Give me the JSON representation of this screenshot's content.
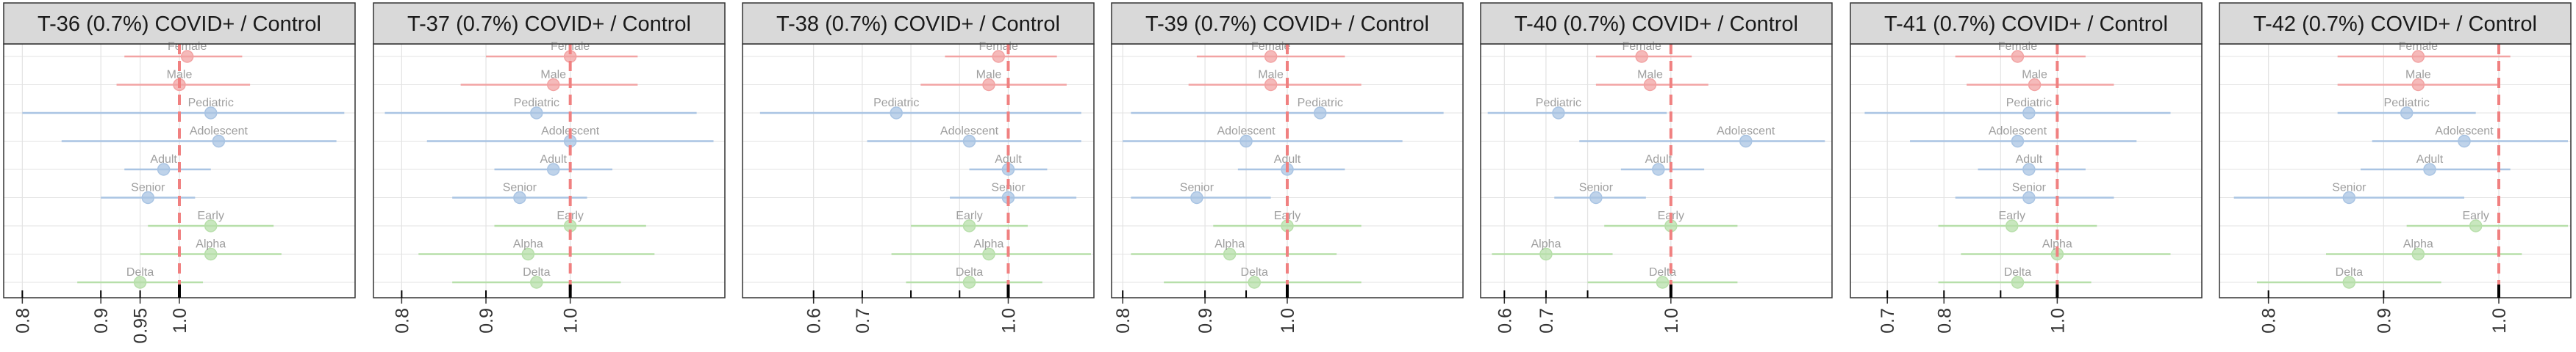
{
  "colors": {
    "strip_fill": "#d9d9d9",
    "strip_border": "#333333",
    "panel_border": "#333333",
    "grid_major": "#e3e3e3",
    "grid_minor": "#f1f1f1",
    "ref_line": "#f08080",
    "sex": "#f2a3a3",
    "age": "#a9c4e3",
    "wave": "#b7dfaa",
    "point_label": "#9e9e9e",
    "tick_text": "#333333"
  },
  "chart_data": [
    {
      "type": "scatter",
      "title": "T-36 (0.7%) COVID+ / Control",
      "xlim": [
        0.78,
        1.22
      ],
      "xticks": [
        0.8,
        0.9,
        0.95,
        1.0
      ],
      "ref_x": 1.0,
      "series": [
        {
          "name": "Female",
          "group": "sex",
          "estimate": 1.01,
          "lower": 0.93,
          "upper": 1.08
        },
        {
          "name": "Male",
          "group": "sex",
          "estimate": 1.0,
          "lower": 0.92,
          "upper": 1.09
        },
        {
          "name": "Pediatric",
          "group": "age",
          "estimate": 1.04,
          "lower": 0.8,
          "upper": 1.21
        },
        {
          "name": "Adolescent",
          "group": "age",
          "estimate": 1.05,
          "lower": 0.85,
          "upper": 1.2
        },
        {
          "name": "Adult",
          "group": "age",
          "estimate": 0.98,
          "lower": 0.93,
          "upper": 1.04
        },
        {
          "name": "Senior",
          "group": "age",
          "estimate": 0.96,
          "lower": 0.9,
          "upper": 1.02
        },
        {
          "name": "Early",
          "group": "wave",
          "estimate": 1.04,
          "lower": 0.96,
          "upper": 1.12
        },
        {
          "name": "Alpha",
          "group": "wave",
          "estimate": 1.04,
          "lower": 0.95,
          "upper": 1.13
        },
        {
          "name": "Delta",
          "group": "wave",
          "estimate": 0.95,
          "lower": 0.87,
          "upper": 1.03
        }
      ]
    },
    {
      "type": "scatter",
      "title": "T-37 (0.7%) COVID+ / Control",
      "xlim": [
        0.77,
        1.18
      ],
      "xticks": [
        0.8,
        0.9,
        1.0
      ],
      "ref_x": 1.0,
      "series": [
        {
          "name": "Female",
          "group": "sex",
          "estimate": 1.0,
          "lower": 0.9,
          "upper": 1.08
        },
        {
          "name": "Male",
          "group": "sex",
          "estimate": 0.98,
          "lower": 0.87,
          "upper": 1.08
        },
        {
          "name": "Pediatric",
          "group": "age",
          "estimate": 0.96,
          "lower": 0.78,
          "upper": 1.15
        },
        {
          "name": "Adolescent",
          "group": "age",
          "estimate": 1.0,
          "lower": 0.83,
          "upper": 1.17
        },
        {
          "name": "Adult",
          "group": "age",
          "estimate": 0.98,
          "lower": 0.91,
          "upper": 1.05
        },
        {
          "name": "Senior",
          "group": "age",
          "estimate": 0.94,
          "lower": 0.86,
          "upper": 1.02
        },
        {
          "name": "Early",
          "group": "wave",
          "estimate": 1.0,
          "lower": 0.91,
          "upper": 1.09
        },
        {
          "name": "Alpha",
          "group": "wave",
          "estimate": 0.95,
          "lower": 0.82,
          "upper": 1.1
        },
        {
          "name": "Delta",
          "group": "wave",
          "estimate": 0.96,
          "lower": 0.86,
          "upper": 1.06
        }
      ]
    },
    {
      "type": "scatter",
      "title": "T-38 (0.7%) COVID+ / Control",
      "xlim": [
        0.46,
        1.17
      ],
      "xticks": [
        0.6,
        0.7,
        1.0
      ],
      "minor_ticks": [
        0.8,
        0.9
      ],
      "ref_x": 1.0,
      "series": [
        {
          "name": "Female",
          "group": "sex",
          "estimate": 0.98,
          "lower": 0.87,
          "upper": 1.1
        },
        {
          "name": "Male",
          "group": "sex",
          "estimate": 0.96,
          "lower": 0.82,
          "upper": 1.12
        },
        {
          "name": "Pediatric",
          "group": "age",
          "estimate": 0.77,
          "lower": 0.49,
          "upper": 1.15
        },
        {
          "name": "Adolescent",
          "group": "age",
          "estimate": 0.92,
          "lower": 0.71,
          "upper": 1.15
        },
        {
          "name": "Adult",
          "group": "age",
          "estimate": 1.0,
          "lower": 0.92,
          "upper": 1.08
        },
        {
          "name": "Senior",
          "group": "age",
          "estimate": 1.0,
          "lower": 0.88,
          "upper": 1.14
        },
        {
          "name": "Early",
          "group": "wave",
          "estimate": 0.92,
          "lower": 0.8,
          "upper": 1.04
        },
        {
          "name": "Alpha",
          "group": "wave",
          "estimate": 0.96,
          "lower": 0.76,
          "upper": 1.17
        },
        {
          "name": "Delta",
          "group": "wave",
          "estimate": 0.92,
          "lower": 0.79,
          "upper": 1.07
        }
      ]
    },
    {
      "type": "scatter",
      "title": "T-39 (0.7%) COVID+ / Control",
      "xlim": [
        0.79,
        1.21
      ],
      "xticks": [
        0.8,
        0.9,
        1.0
      ],
      "minor_ticks": [
        0.95
      ],
      "ref_x": 1.0,
      "series": [
        {
          "name": "Female",
          "group": "sex",
          "estimate": 0.98,
          "lower": 0.89,
          "upper": 1.07
        },
        {
          "name": "Male",
          "group": "sex",
          "estimate": 0.98,
          "lower": 0.88,
          "upper": 1.09
        },
        {
          "name": "Pediatric",
          "group": "age",
          "estimate": 1.04,
          "lower": 0.81,
          "upper": 1.19
        },
        {
          "name": "Adolescent",
          "group": "age",
          "estimate": 0.95,
          "lower": 0.8,
          "upper": 1.14
        },
        {
          "name": "Adult",
          "group": "age",
          "estimate": 1.0,
          "lower": 0.94,
          "upper": 1.07
        },
        {
          "name": "Senior",
          "group": "age",
          "estimate": 0.89,
          "lower": 0.81,
          "upper": 0.98
        },
        {
          "name": "Early",
          "group": "wave",
          "estimate": 1.0,
          "lower": 0.91,
          "upper": 1.09
        },
        {
          "name": "Alpha",
          "group": "wave",
          "estimate": 0.93,
          "lower": 0.81,
          "upper": 1.06
        },
        {
          "name": "Delta",
          "group": "wave",
          "estimate": 0.96,
          "lower": 0.85,
          "upper": 1.09
        }
      ]
    },
    {
      "type": "scatter",
      "title": "T-40 (0.7%) COVID+ / Control",
      "xlim": [
        0.55,
        1.38
      ],
      "xticks": [
        0.6,
        0.7,
        1.0
      ],
      "minor_ticks": [
        0.8
      ],
      "ref_x": 1.0,
      "series": [
        {
          "name": "Female",
          "group": "sex",
          "estimate": 0.93,
          "lower": 0.82,
          "upper": 1.05
        },
        {
          "name": "Male",
          "group": "sex",
          "estimate": 0.95,
          "lower": 0.82,
          "upper": 1.09
        },
        {
          "name": "Pediatric",
          "group": "age",
          "estimate": 0.73,
          "lower": 0.56,
          "upper": 0.99
        },
        {
          "name": "Adolescent",
          "group": "age",
          "estimate": 1.18,
          "lower": 0.78,
          "upper": 1.37
        },
        {
          "name": "Adult",
          "group": "age",
          "estimate": 0.97,
          "lower": 0.88,
          "upper": 1.08
        },
        {
          "name": "Senior",
          "group": "age",
          "estimate": 0.82,
          "lower": 0.72,
          "upper": 0.94
        },
        {
          "name": "Early",
          "group": "wave",
          "estimate": 1.0,
          "lower": 0.84,
          "upper": 1.16
        },
        {
          "name": "Alpha",
          "group": "wave",
          "estimate": 0.7,
          "lower": 0.57,
          "upper": 0.86
        },
        {
          "name": "Delta",
          "group": "wave",
          "estimate": 0.98,
          "lower": 0.8,
          "upper": 1.16
        }
      ]
    },
    {
      "type": "scatter",
      "title": "T-41 (0.7%) COVID+ / Control",
      "xlim": [
        0.64,
        1.25
      ],
      "xticks": [
        0.7,
        0.8,
        1.0
      ],
      "minor_ticks": [
        0.9
      ],
      "ref_x": 1.0,
      "series": [
        {
          "name": "Female",
          "group": "sex",
          "estimate": 0.93,
          "lower": 0.82,
          "upper": 1.05
        },
        {
          "name": "Male",
          "group": "sex",
          "estimate": 0.96,
          "lower": 0.84,
          "upper": 1.1
        },
        {
          "name": "Pediatric",
          "group": "age",
          "estimate": 0.95,
          "lower": 0.66,
          "upper": 1.2
        },
        {
          "name": "Adolescent",
          "group": "age",
          "estimate": 0.93,
          "lower": 0.74,
          "upper": 1.14
        },
        {
          "name": "Adult",
          "group": "age",
          "estimate": 0.95,
          "lower": 0.86,
          "upper": 1.05
        },
        {
          "name": "Senior",
          "group": "age",
          "estimate": 0.95,
          "lower": 0.82,
          "upper": 1.1
        },
        {
          "name": "Early",
          "group": "wave",
          "estimate": 0.92,
          "lower": 0.79,
          "upper": 1.07
        },
        {
          "name": "Alpha",
          "group": "wave",
          "estimate": 1.0,
          "lower": 0.83,
          "upper": 1.2
        },
        {
          "name": "Delta",
          "group": "wave",
          "estimate": 0.93,
          "lower": 0.79,
          "upper": 1.06
        }
      ]
    },
    {
      "type": "scatter",
      "title": "T-42 (0.7%) COVID+ / Control",
      "xlim": [
        0.76,
        1.06
      ],
      "xticks": [
        0.8,
        0.9,
        1.0
      ],
      "ref_x": 1.0,
      "series": [
        {
          "name": "Female",
          "group": "sex",
          "estimate": 0.93,
          "lower": 0.86,
          "upper": 1.01
        },
        {
          "name": "Male",
          "group": "sex",
          "estimate": 0.93,
          "lower": 0.86,
          "upper": 1.0
        },
        {
          "name": "Pediatric",
          "group": "age",
          "estimate": 0.92,
          "lower": 0.86,
          "upper": 0.98
        },
        {
          "name": "Adolescent",
          "group": "age",
          "estimate": 0.97,
          "lower": 0.89,
          "upper": 1.06
        },
        {
          "name": "Adult",
          "group": "age",
          "estimate": 0.94,
          "lower": 0.88,
          "upper": 1.01
        },
        {
          "name": "Senior",
          "group": "age",
          "estimate": 0.87,
          "lower": 0.77,
          "upper": 0.97
        },
        {
          "name": "Early",
          "group": "wave",
          "estimate": 0.98,
          "lower": 0.92,
          "upper": 1.06
        },
        {
          "name": "Alpha",
          "group": "wave",
          "estimate": 0.93,
          "lower": 0.85,
          "upper": 1.02
        },
        {
          "name": "Delta",
          "group": "wave",
          "estimate": 0.87,
          "lower": 0.79,
          "upper": 0.95
        }
      ]
    }
  ]
}
